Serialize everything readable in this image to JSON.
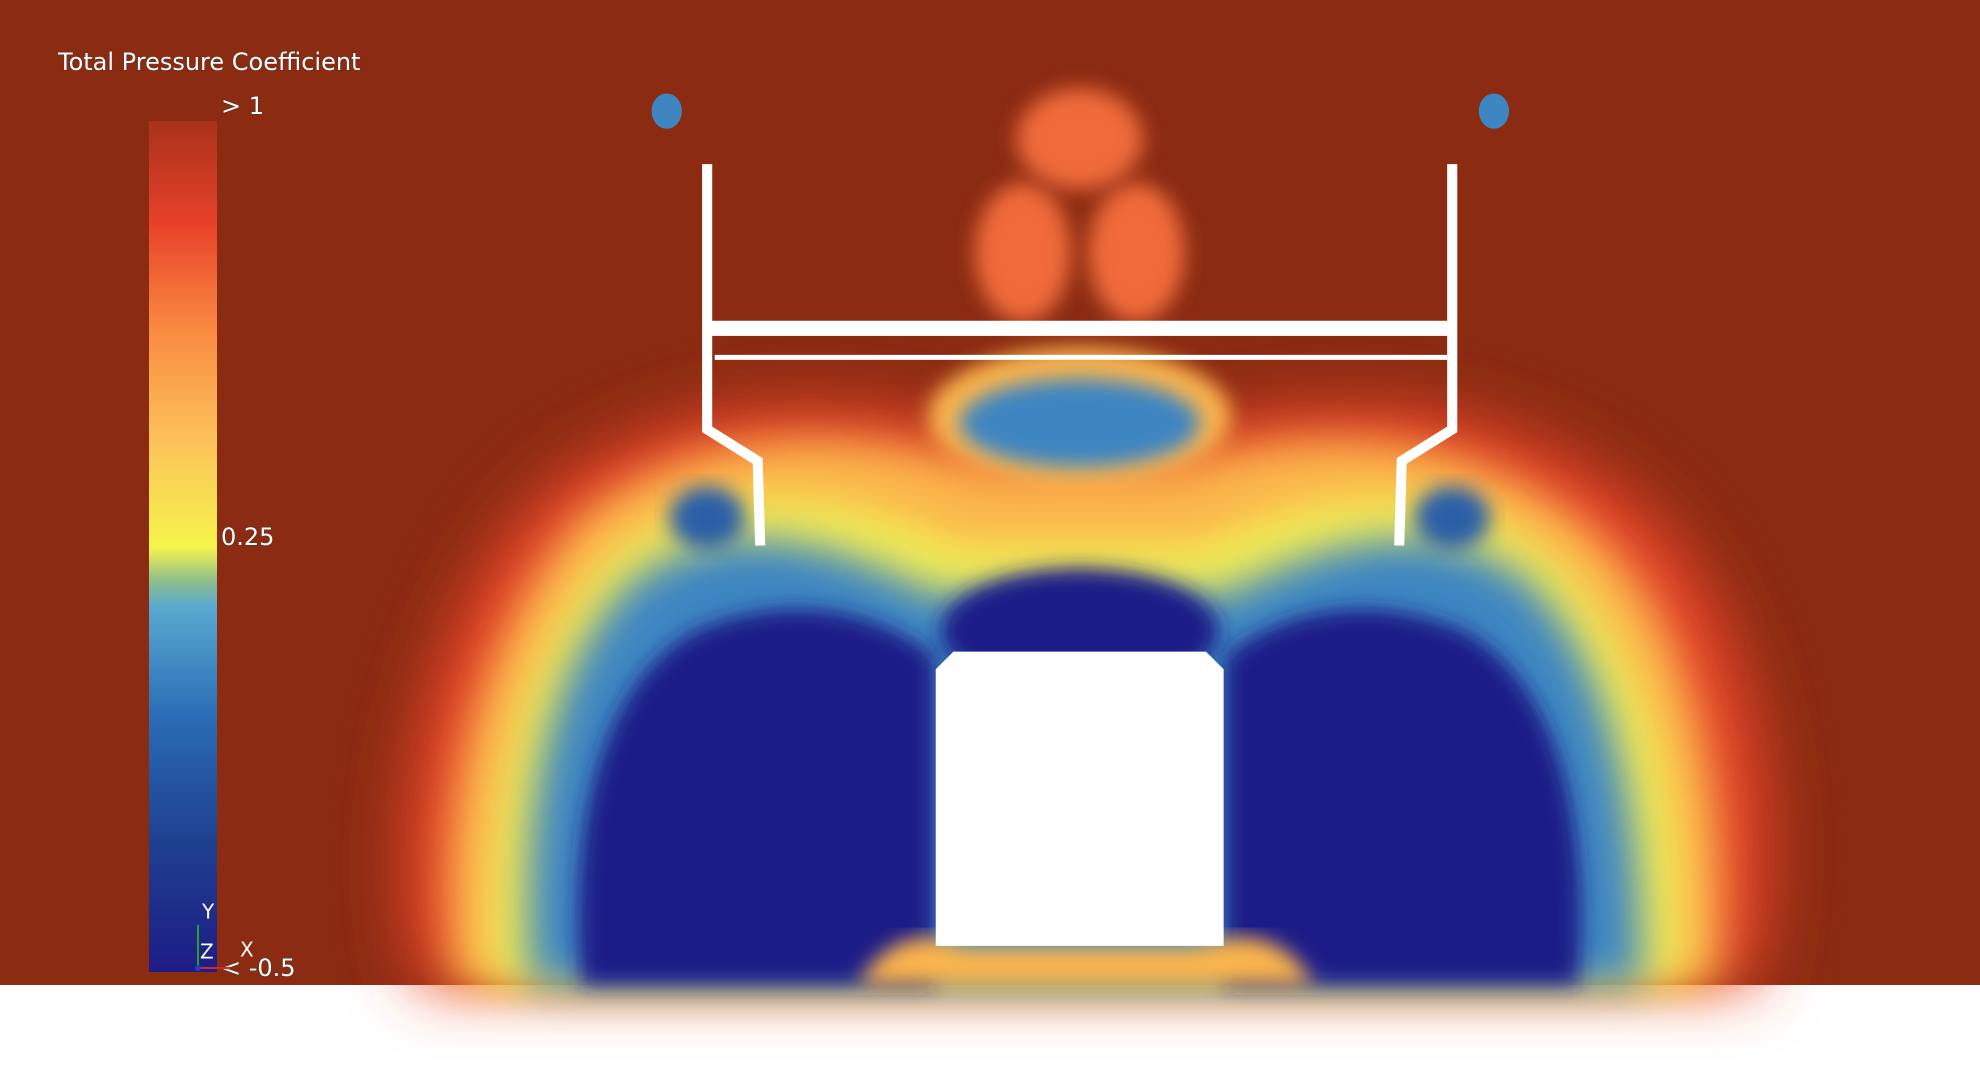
{
  "legend": {
    "title": "Total Pressure Coefficient",
    "ticks": [
      {
        "value": 1,
        "label": "> 1"
      },
      0.25,
      {
        "value": -0.5,
        "label": "< -0.5"
      }
    ]
  },
  "triad": {
    "y": "Y",
    "z": "Z",
    "x": "X"
  }
}
